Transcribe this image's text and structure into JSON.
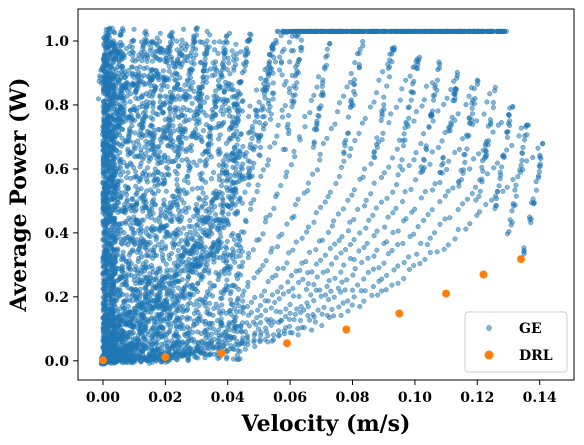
{
  "chart_data": {
    "type": "scatter",
    "xlabel": "Velocity (m/s)",
    "ylabel": "Average Power (W)",
    "xlim": [
      -0.008,
      0.151
    ],
    "ylim": [
      -0.06,
      1.1
    ],
    "xticks": [
      "0.00",
      "0.02",
      "0.04",
      "0.06",
      "0.08",
      "0.10",
      "0.12",
      "0.14"
    ],
    "yticks": [
      "0.0",
      "0.2",
      "0.4",
      "0.6",
      "0.8",
      "1.0"
    ],
    "xtick_values": [
      0,
      0.02,
      0.04,
      0.06,
      0.08,
      0.1,
      0.12,
      0.14
    ],
    "ytick_values": [
      0,
      0.2,
      0.4,
      0.6,
      0.8,
      1.0
    ],
    "grid": false,
    "legend_position": "bottom-right",
    "series": [
      {
        "name": "GE",
        "color": "#1f77b4",
        "marker": "circle-small-translucent",
        "description_of_distribution": "dense cloud filling 0-0.04 m/s for all power 0-1.04 W, with curved arcs fanning out to upper boundary ~0.68 W at 0.141 m/s",
        "arcs": [
          {
            "v": 0.002,
            "p": 1.04
          },
          {
            "v": 0.006,
            "p": 1.04
          },
          {
            "v": 0.01,
            "p": 1.04
          },
          {
            "v": 0.014,
            "p": 1.03
          },
          {
            "v": 0.018,
            "p": 1.03
          },
          {
            "v": 0.022,
            "p": 1.03
          },
          {
            "v": 0.026,
            "p": 1.04
          },
          {
            "v": 0.03,
            "p": 1.04
          },
          {
            "v": 0.034,
            "p": 1.02
          },
          {
            "v": 0.04,
            "p": 1.02
          },
          {
            "v": 0.047,
            "p": 1.02
          },
          {
            "v": 0.055,
            "p": 1.01
          },
          {
            "v": 0.064,
            "p": 1.0
          },
          {
            "v": 0.073,
            "p": 1.0
          },
          {
            "v": 0.083,
            "p": 0.99
          },
          {
            "v": 0.093,
            "p": 0.98
          },
          {
            "v": 0.101,
            "p": 0.95
          },
          {
            "v": 0.108,
            "p": 0.93
          },
          {
            "v": 0.114,
            "p": 0.9
          },
          {
            "v": 0.12,
            "p": 0.88
          },
          {
            "v": 0.126,
            "p": 0.85
          },
          {
            "v": 0.131,
            "p": 0.8
          },
          {
            "v": 0.136,
            "p": 0.74
          },
          {
            "v": 0.141,
            "p": 0.68
          }
        ]
      },
      {
        "name": "DRL",
        "color": "#ff7f0e",
        "marker": "circle",
        "x": [
          0.0,
          0.02,
          0.038,
          0.059,
          0.078,
          0.095,
          0.11,
          0.122,
          0.134
        ],
        "y": [
          0.002,
          0.012,
          0.024,
          0.055,
          0.098,
          0.148,
          0.21,
          0.27,
          0.318
        ]
      }
    ]
  }
}
